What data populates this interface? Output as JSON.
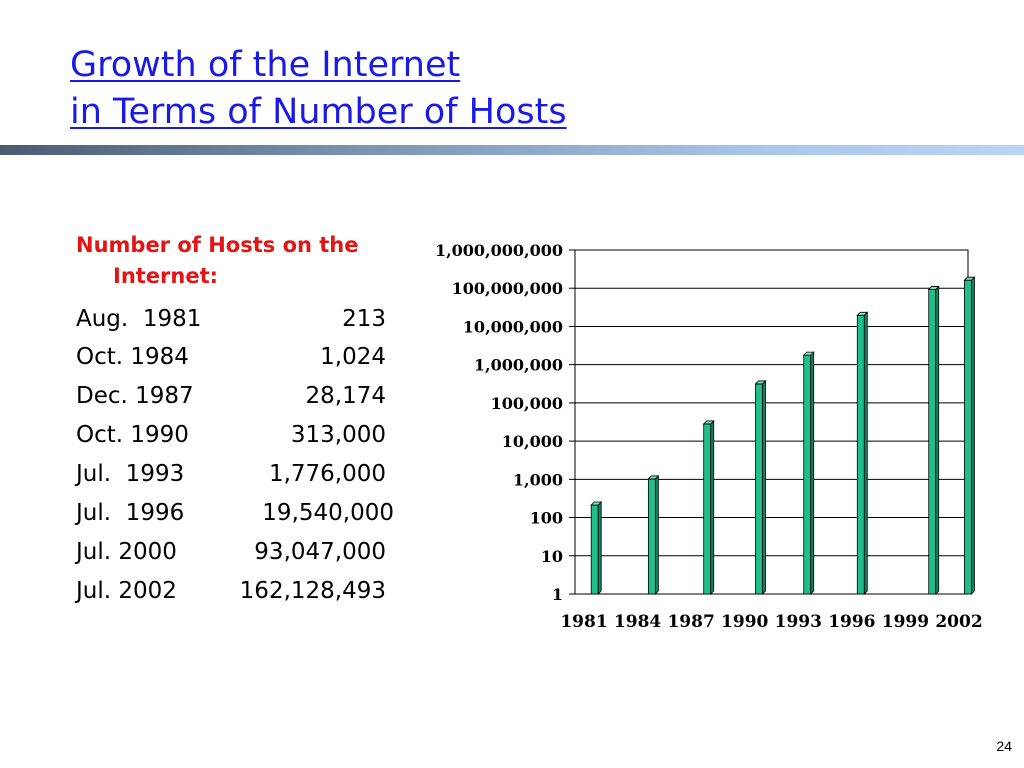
{
  "slide": {
    "title_line1": "Growth of the Internet",
    "title_line2": "in Terms of Number of Hosts",
    "page_number": "24"
  },
  "table": {
    "heading_line1": "Number of Hosts on the",
    "heading_line2": "Internet:",
    "rows": [
      {
        "date": "Aug.  1981",
        "hosts": "213"
      },
      {
        "date": "Oct. 1984",
        "hosts": "1,024"
      },
      {
        "date": "Dec. 1987",
        "hosts": "28,174"
      },
      {
        "date": "Oct. 1990",
        "hosts": "313,000"
      },
      {
        "date": "Jul.  1993",
        "hosts": "1,776,000"
      },
      {
        "date": "Jul.  1996",
        "hosts": "19,540,000"
      },
      {
        "date": "Jul. 2000",
        "hosts": "93,047,000"
      },
      {
        "date": "Jul. 2002",
        "hosts": "162,128,493"
      }
    ]
  },
  "colors": {
    "title": "#1a1ae6",
    "heading": "#e31414",
    "bar_front": "#1fbf8c",
    "bar_side": "#138060",
    "bar_top": "#7fe3c3"
  },
  "chart_data": {
    "type": "bar",
    "title": "",
    "xlabel": "",
    "ylabel": "",
    "y_scale": "log",
    "ylim": [
      1,
      1000000000
    ],
    "x_range": [
      1981,
      2002
    ],
    "grid": true,
    "y_ticks": [
      "1",
      "10",
      "100",
      "1,000",
      "10,000",
      "100,000",
      "1,000,000",
      "10,000,000",
      "100,000,000",
      "1,000,000,000"
    ],
    "x_ticks": [
      "1981",
      "1984",
      "1987",
      "1990",
      "1993",
      "1996",
      "1999",
      "2002"
    ],
    "x": [
      1981.6,
      1984.8,
      1987.9,
      1990.8,
      1993.5,
      1996.5,
      2000.5,
      2002.5
    ],
    "values": [
      213,
      1024,
      28174,
      313000,
      1776000,
      19540000,
      93047000,
      162128493
    ]
  }
}
